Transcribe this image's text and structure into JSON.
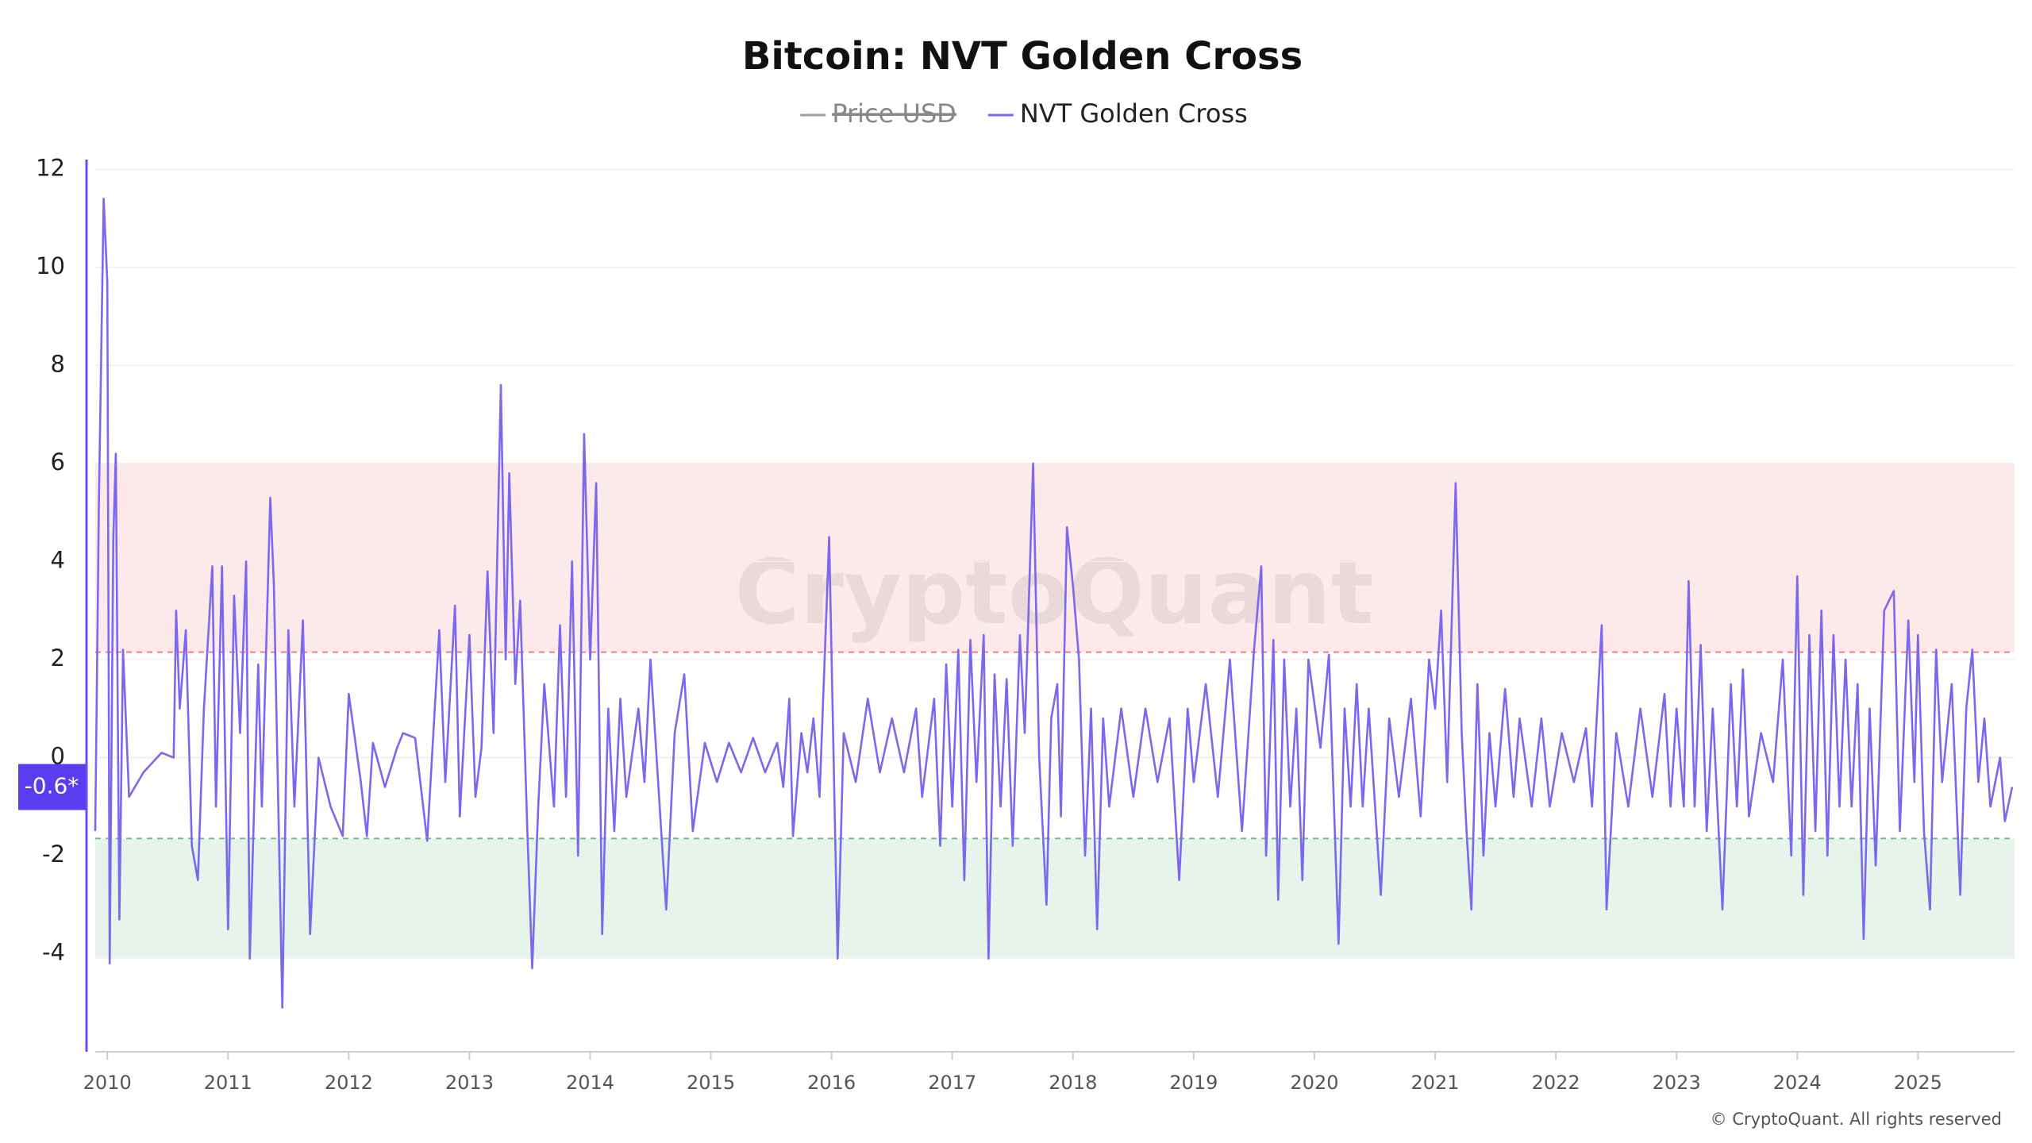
{
  "chart_data": {
    "type": "line",
    "title": "Bitcoin: NVT Golden Cross",
    "hidden_series": [
      {
        "name": "Price USD",
        "color": "#9e9e9e"
      }
    ],
    "x": [
      2009.9,
      2009.93,
      2009.97,
      2010.0,
      2010.02,
      2010.05,
      2010.07,
      2010.1,
      2010.13,
      2010.18,
      2010.3,
      2010.45,
      2010.55,
      2010.57,
      2010.6,
      2010.65,
      2010.7,
      2010.75,
      2010.8,
      2010.87,
      2010.9,
      2010.95,
      2011.0,
      2011.05,
      2011.1,
      2011.15,
      2011.18,
      2011.25,
      2011.28,
      2011.35,
      2011.38,
      2011.45,
      2011.5,
      2011.55,
      2011.62,
      2011.68,
      2011.75,
      2011.85,
      2011.95,
      2012.0,
      2012.1,
      2012.15,
      2012.2,
      2012.3,
      2012.4,
      2012.45,
      2012.55,
      2012.65,
      2012.75,
      2012.8,
      2012.88,
      2012.92,
      2013.0,
      2013.05,
      2013.1,
      2013.15,
      2013.2,
      2013.26,
      2013.3,
      2013.33,
      2013.38,
      2013.42,
      2013.48,
      2013.52,
      2013.57,
      2013.62,
      2013.7,
      2013.75,
      2013.8,
      2013.85,
      2013.9,
      2013.95,
      2014.0,
      2014.05,
      2014.1,
      2014.15,
      2014.2,
      2014.25,
      2014.3,
      2014.4,
      2014.45,
      2014.5,
      2014.55,
      2014.63,
      2014.7,
      2014.78,
      2014.85,
      2014.95,
      2015.05,
      2015.15,
      2015.25,
      2015.35,
      2015.45,
      2015.55,
      2015.6,
      2015.65,
      2015.68,
      2015.75,
      2015.8,
      2015.85,
      2015.9,
      2015.98,
      2016.05,
      2016.1,
      2016.2,
      2016.3,
      2016.4,
      2016.5,
      2016.6,
      2016.7,
      2016.75,
      2016.85,
      2016.9,
      2016.95,
      2017.0,
      2017.05,
      2017.1,
      2017.15,
      2017.2,
      2017.26,
      2017.3,
      2017.35,
      2017.4,
      2017.45,
      2017.5,
      2017.56,
      2017.6,
      2017.67,
      2017.72,
      2017.78,
      2017.82,
      2017.87,
      2017.9,
      2017.95,
      2018.0,
      2018.05,
      2018.1,
      2018.15,
      2018.2,
      2018.25,
      2018.3,
      2018.4,
      2018.5,
      2018.6,
      2018.7,
      2018.8,
      2018.88,
      2018.95,
      2019.0,
      2019.1,
      2019.2,
      2019.3,
      2019.4,
      2019.5,
      2019.56,
      2019.6,
      2019.66,
      2019.7,
      2019.75,
      2019.8,
      2019.85,
      2019.9,
      2019.95,
      2020.05,
      2020.12,
      2020.2,
      2020.25,
      2020.3,
      2020.35,
      2020.4,
      2020.45,
      2020.55,
      2020.62,
      2020.7,
      2020.8,
      2020.88,
      2020.95,
      2021.0,
      2021.05,
      2021.1,
      2021.17,
      2021.22,
      2021.26,
      2021.3,
      2021.35,
      2021.4,
      2021.45,
      2021.5,
      2021.58,
      2021.65,
      2021.7,
      2021.8,
      2021.88,
      2021.95,
      2022.05,
      2022.15,
      2022.25,
      2022.3,
      2022.38,
      2022.42,
      2022.5,
      2022.6,
      2022.7,
      2022.8,
      2022.9,
      2022.95,
      2023.0,
      2023.06,
      2023.1,
      2023.15,
      2023.2,
      2023.25,
      2023.3,
      2023.38,
      2023.45,
      2023.5,
      2023.55,
      2023.6,
      2023.7,
      2023.8,
      2023.88,
      2023.95,
      2024.0,
      2024.05,
      2024.1,
      2024.15,
      2024.2,
      2024.25,
      2024.3,
      2024.35,
      2024.4,
      2024.45,
      2024.5,
      2024.55,
      2024.6,
      2024.65,
      2024.72,
      2024.8,
      2024.85,
      2024.92,
      2024.97,
      2025.0,
      2025.05,
      2025.1,
      2025.15,
      2025.2,
      2025.28,
      2025.35,
      2025.4,
      2025.45,
      2025.5,
      2025.55,
      2025.6,
      2025.68,
      2025.72,
      2025.78
    ],
    "series": [
      {
        "name": "NVT Golden Cross",
        "color": "#7b68ee",
        "values": [
          -1.5,
          5.2,
          11.4,
          9.7,
          -4.2,
          4.5,
          6.2,
          -3.3,
          2.2,
          -0.8,
          -0.3,
          0.1,
          0,
          3.0,
          1.0,
          2.6,
          -1.8,
          -2.5,
          1.0,
          3.9,
          -1.0,
          3.9,
          -3.5,
          3.3,
          0.5,
          4.0,
          -4.1,
          1.9,
          -1.0,
          5.3,
          3.5,
          -5.1,
          2.6,
          -1.0,
          2.8,
          -3.6,
          0,
          -1.0,
          -1.6,
          1.3,
          -0.5,
          -1.6,
          0.3,
          -0.6,
          0.2,
          0.5,
          0.4,
          -1.7,
          2.6,
          -0.5,
          3.1,
          -1.2,
          2.5,
          -0.8,
          0.2,
          3.8,
          0.5,
          7.6,
          2.0,
          5.8,
          1.5,
          3.2,
          -1.5,
          -4.3,
          -1.0,
          1.5,
          -1.0,
          2.7,
          -0.8,
          4.0,
          -2.0,
          6.6,
          2.0,
          5.6,
          -3.6,
          1.0,
          -1.5,
          1.2,
          -0.8,
          1.0,
          -0.5,
          2.0,
          0.0,
          -3.1,
          0.5,
          1.7,
          -1.5,
          0.3,
          -0.5,
          0.3,
          -0.3,
          0.4,
          -0.3,
          0.3,
          -0.6,
          1.2,
          -1.6,
          0.5,
          -0.3,
          0.8,
          -0.8,
          4.5,
          -4.1,
          0.5,
          -0.5,
          1.2,
          -0.3,
          0.8,
          -0.3,
          1.0,
          -0.8,
          1.2,
          -1.8,
          1.9,
          -1.0,
          2.2,
          -2.5,
          2.4,
          -0.5,
          2.5,
          -4.1,
          1.7,
          -1.0,
          1.6,
          -1.8,
          2.5,
          0.5,
          6.0,
          0.0,
          -3.0,
          0.8,
          1.5,
          -1.2,
          4.7,
          3.5,
          2.0,
          -2.0,
          1.0,
          -3.5,
          0.8,
          -1.0,
          1.0,
          -0.8,
          1.0,
          -0.5,
          0.8,
          -2.5,
          1.0,
          -0.5,
          1.5,
          -0.8,
          2.0,
          -1.5,
          2.2,
          3.9,
          -2.0,
          2.4,
          -2.9,
          2.0,
          -1.0,
          1.0,
          -2.5,
          2.0,
          0.2,
          2.1,
          -3.8,
          1.0,
          -1.0,
          1.5,
          -1.0,
          1.0,
          -2.8,
          0.8,
          -0.8,
          1.2,
          -1.2,
          2.0,
          1.0,
          3.0,
          -0.5,
          5.6,
          0.5,
          -1.5,
          -3.1,
          1.5,
          -2.0,
          0.5,
          -1.0,
          1.4,
          -0.8,
          0.8,
          -1.0,
          0.8,
          -1.0,
          0.5,
          -0.5,
          0.6,
          -1.0,
          2.7,
          -3.1,
          0.5,
          -1.0,
          1.0,
          -0.8,
          1.3,
          -1.0,
          1.0,
          -1.0,
          3.6,
          -1.0,
          2.3,
          -1.5,
          1.0,
          -3.1,
          1.5,
          -1.0,
          1.8,
          -1.2,
          0.5,
          -0.5,
          2.0,
          -2.0,
          3.7,
          -2.8,
          2.5,
          -1.5,
          3.0,
          -2.0,
          2.5,
          -1.0,
          2.0,
          -1.0,
          1.5,
          -3.7,
          1.0,
          -2.2,
          3.0,
          3.4,
          -1.5,
          2.8,
          -0.5,
          2.5,
          -1.5,
          -3.1,
          2.2,
          -0.5,
          1.5,
          -2.8,
          1.0,
          2.2,
          -0.5,
          0.8,
          -1.0,
          0.0,
          -1.3,
          -0.6
        ]
      }
    ],
    "current_marker": {
      "value": -0.6,
      "label": "-0.6*"
    },
    "bands": [
      {
        "from": 2.15,
        "to": 6,
        "color": "#f08080"
      },
      {
        "from": -4.1,
        "to": -1.65,
        "color": "#6fbf8f"
      }
    ],
    "xlim": [
      2009.9,
      2025.8
    ],
    "xticks": [
      2010,
      2011,
      2012,
      2013,
      2014,
      2015,
      2016,
      2017,
      2018,
      2019,
      2020,
      2021,
      2022,
      2023,
      2024,
      2025
    ],
    "ylim": [
      -6,
      12.2
    ],
    "yticks": [
      -4,
      -2,
      0,
      2,
      4,
      6,
      8,
      10,
      12
    ],
    "grid": true,
    "watermark": "CryptoQuant",
    "footer": "© CryptoQuant. All rights reserved"
  }
}
